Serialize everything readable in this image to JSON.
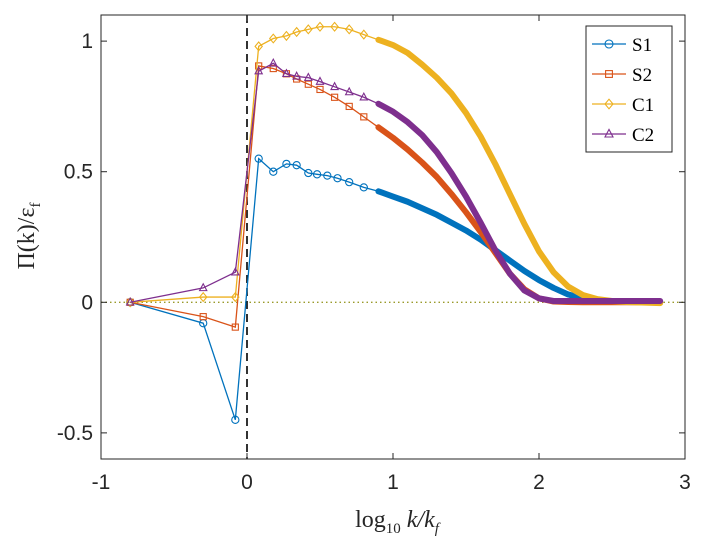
{
  "chart_data": {
    "type": "line",
    "xlabel": "log10 k/kf",
    "xlabel_parts": {
      "base": "log",
      "sub1": "10",
      "var": " k/k",
      "sub2": "f"
    },
    "ylabel": "Π(k)/εf",
    "ylabel_parts": {
      "main": "Π(k)/ε",
      "sub": "f"
    },
    "xlim": [
      -1,
      3
    ],
    "ylim": [
      -0.6,
      1.1
    ],
    "xticks": [
      -1,
      0,
      1,
      2,
      3
    ],
    "xtick_labels": [
      "-1",
      "0",
      "1",
      "2",
      "3"
    ],
    "yticks": [
      -0.5,
      0,
      0.5,
      1
    ],
    "ytick_labels": [
      "-0.5",
      "0",
      "0.5",
      "1"
    ],
    "reference_lines": {
      "vertical_dashed_x": 0,
      "horizontal_dotted_y": 0
    },
    "legend_position": "top-right",
    "series": [
      {
        "name": "S1",
        "color": "#0072BD",
        "marker": "circle",
        "points": [
          [
            -0.8,
            0
          ],
          [
            -0.3,
            -0.08
          ],
          [
            -0.08,
            -0.45
          ],
          [
            0.08,
            0.55
          ],
          [
            0.18,
            0.5
          ],
          [
            0.27,
            0.53
          ],
          [
            0.34,
            0.525
          ],
          [
            0.42,
            0.495
          ],
          [
            0.48,
            0.49
          ],
          [
            0.55,
            0.485
          ],
          [
            0.62,
            0.475
          ],
          [
            0.7,
            0.46
          ],
          [
            0.8,
            0.44
          ],
          [
            0.9,
            0.425
          ],
          [
            1.0,
            0.405
          ],
          [
            1.1,
            0.385
          ],
          [
            1.2,
            0.36
          ],
          [
            1.3,
            0.335
          ],
          [
            1.4,
            0.305
          ],
          [
            1.5,
            0.275
          ],
          [
            1.6,
            0.24
          ],
          [
            1.7,
            0.2
          ],
          [
            1.8,
            0.16
          ],
          [
            1.9,
            0.12
          ],
          [
            2.0,
            0.085
          ],
          [
            2.1,
            0.055
          ],
          [
            2.2,
            0.03
          ],
          [
            2.3,
            0.015
          ],
          [
            2.4,
            0.005
          ],
          [
            2.5,
            0.002
          ],
          [
            2.6,
            0.001
          ],
          [
            2.7,
            0.001
          ],
          [
            2.83,
            0.001
          ]
        ]
      },
      {
        "name": "S2",
        "color": "#D95319",
        "marker": "square",
        "points": [
          [
            -0.8,
            0
          ],
          [
            -0.3,
            -0.055
          ],
          [
            -0.08,
            -0.095
          ],
          [
            0.08,
            0.905
          ],
          [
            0.18,
            0.895
          ],
          [
            0.27,
            0.875
          ],
          [
            0.34,
            0.855
          ],
          [
            0.42,
            0.835
          ],
          [
            0.5,
            0.815
          ],
          [
            0.6,
            0.785
          ],
          [
            0.7,
            0.75
          ],
          [
            0.8,
            0.71
          ],
          [
            0.9,
            0.67
          ],
          [
            1.0,
            0.63
          ],
          [
            1.1,
            0.585
          ],
          [
            1.2,
            0.535
          ],
          [
            1.3,
            0.48
          ],
          [
            1.4,
            0.415
          ],
          [
            1.5,
            0.345
          ],
          [
            1.6,
            0.27
          ],
          [
            1.7,
            0.19
          ],
          [
            1.8,
            0.11
          ],
          [
            1.9,
            0.05
          ],
          [
            2.0,
            0.015
          ],
          [
            2.1,
            0.003
          ],
          [
            2.2,
            0.001
          ],
          [
            2.3,
            0
          ],
          [
            2.5,
            0
          ],
          [
            2.7,
            0
          ],
          [
            2.83,
            0
          ]
        ]
      },
      {
        "name": "C1",
        "color": "#EDB120",
        "marker": "diamond",
        "points": [
          [
            -0.8,
            0
          ],
          [
            -0.3,
            0.02
          ],
          [
            -0.08,
            0.02
          ],
          [
            0.08,
            0.98
          ],
          [
            0.18,
            1.01
          ],
          [
            0.27,
            1.02
          ],
          [
            0.34,
            1.035
          ],
          [
            0.42,
            1.045
          ],
          [
            0.5,
            1.055
          ],
          [
            0.6,
            1.055
          ],
          [
            0.7,
            1.045
          ],
          [
            0.8,
            1.025
          ],
          [
            0.9,
            1.005
          ],
          [
            1.0,
            0.985
          ],
          [
            1.1,
            0.955
          ],
          [
            1.2,
            0.91
          ],
          [
            1.3,
            0.86
          ],
          [
            1.4,
            0.8
          ],
          [
            1.5,
            0.725
          ],
          [
            1.6,
            0.635
          ],
          [
            1.7,
            0.53
          ],
          [
            1.8,
            0.415
          ],
          [
            1.9,
            0.3
          ],
          [
            2.0,
            0.195
          ],
          [
            2.1,
            0.115
          ],
          [
            2.2,
            0.06
          ],
          [
            2.3,
            0.028
          ],
          [
            2.4,
            0.012
          ],
          [
            2.5,
            0.005
          ],
          [
            2.6,
            0.001
          ],
          [
            2.7,
            -0.001
          ],
          [
            2.83,
            -0.003
          ]
        ]
      },
      {
        "name": "C2",
        "color": "#7E2F8E",
        "marker": "triangle",
        "points": [
          [
            -0.8,
            0
          ],
          [
            -0.3,
            0.055
          ],
          [
            -0.08,
            0.115
          ],
          [
            0.08,
            0.885
          ],
          [
            0.18,
            0.915
          ],
          [
            0.27,
            0.875
          ],
          [
            0.34,
            0.865
          ],
          [
            0.42,
            0.86
          ],
          [
            0.5,
            0.845
          ],
          [
            0.6,
            0.825
          ],
          [
            0.7,
            0.805
          ],
          [
            0.8,
            0.785
          ],
          [
            0.9,
            0.76
          ],
          [
            1.0,
            0.73
          ],
          [
            1.1,
            0.69
          ],
          [
            1.2,
            0.64
          ],
          [
            1.3,
            0.575
          ],
          [
            1.4,
            0.495
          ],
          [
            1.5,
            0.405
          ],
          [
            1.6,
            0.305
          ],
          [
            1.7,
            0.2
          ],
          [
            1.8,
            0.11
          ],
          [
            1.9,
            0.045
          ],
          [
            2.0,
            0.015
          ],
          [
            2.1,
            0.005
          ],
          [
            2.2,
            0.005
          ],
          [
            2.4,
            0.005
          ],
          [
            2.6,
            0.005
          ],
          [
            2.83,
            0.005
          ]
        ]
      }
    ]
  }
}
